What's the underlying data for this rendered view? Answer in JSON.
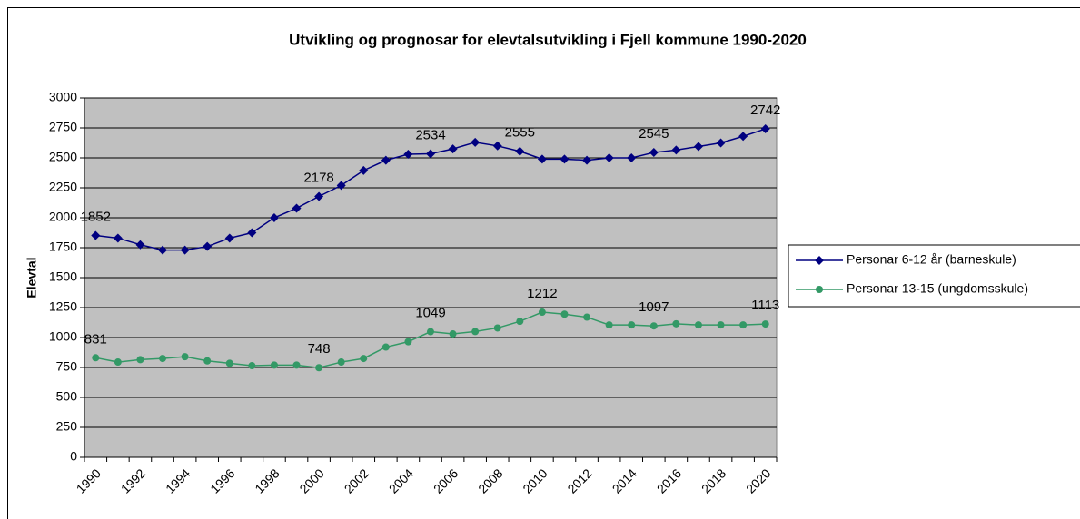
{
  "chart_data": {
    "type": "line",
    "title": "Utvikling og prognosar for elevtalsutvikling i Fjell kommune 1990-2020",
    "y_label": "Elevtal",
    "categories": [
      "1990",
      null,
      "1992",
      null,
      "1994",
      null,
      "1996",
      null,
      "1998",
      null,
      "2000",
      null,
      "2002",
      null,
      "2004",
      null,
      "2006",
      null,
      "2008",
      null,
      "2010",
      null,
      "2012",
      null,
      "2014",
      null,
      "2016",
      null,
      "2018",
      null,
      "2020"
    ],
    "series": [
      {
        "name": "Personar 6-12 år (barneskule)",
        "color": "#000080",
        "marker": "diamond",
        "values": [
          1852,
          1830,
          1775,
          1730,
          1730,
          1760,
          1830,
          1875,
          2000,
          2080,
          2178,
          2270,
          2395,
          2480,
          2530,
          2534,
          2575,
          2630,
          2600,
          2555,
          2490,
          2490,
          2480,
          2500,
          2500,
          2545,
          2565,
          2595,
          2625,
          2680,
          2742
        ],
        "data_labels": [
          0,
          10,
          15,
          19,
          25,
          30
        ]
      },
      {
        "name": "Personar 13-15 (ungdomsskule)",
        "color": "#339966",
        "marker": "circle",
        "values": [
          831,
          795,
          815,
          825,
          840,
          805,
          785,
          765,
          770,
          770,
          748,
          795,
          825,
          920,
          965,
          1049,
          1030,
          1050,
          1080,
          1135,
          1212,
          1195,
          1170,
          1105,
          1105,
          1097,
          1115,
          1105,
          1105,
          1105,
          1113
        ],
        "data_labels": [
          0,
          10,
          15,
          20,
          25,
          30
        ]
      }
    ],
    "ylim": [
      0,
      3000
    ],
    "yticks": [
      0,
      250,
      500,
      750,
      1000,
      1250,
      1500,
      1750,
      2000,
      2250,
      2500,
      2750,
      3000
    ],
    "grid": true,
    "plot_background": "#c0c0c0",
    "legend": "right"
  }
}
